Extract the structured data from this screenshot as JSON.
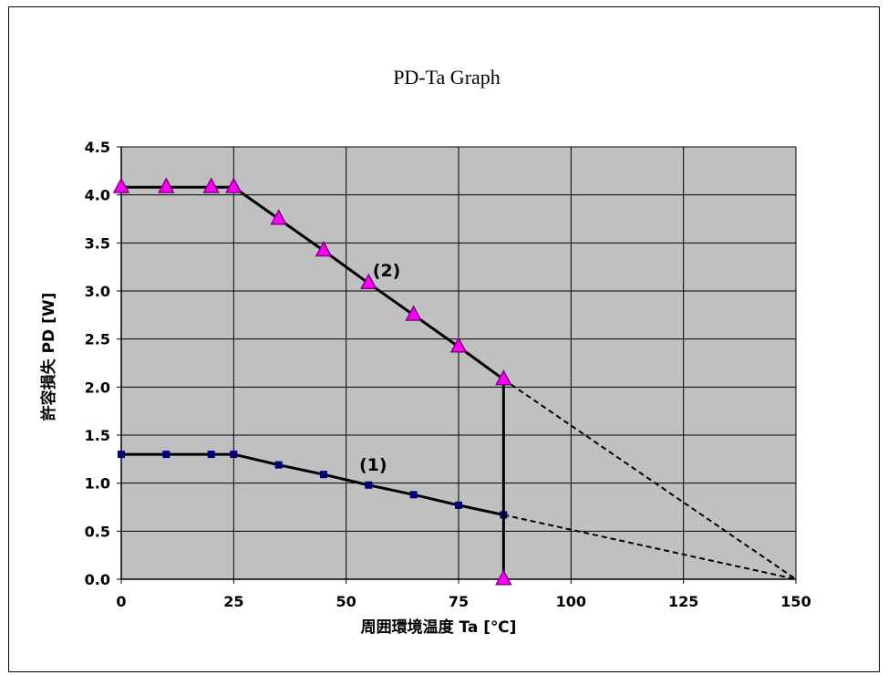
{
  "chart_data": {
    "type": "line",
    "title": "PD-Ta Graph",
    "xlabel": "周囲環境温度 Ta [℃]",
    "ylabel": "許容損失 PD [W]",
    "xlim": [
      0,
      150
    ],
    "ylim": [
      0,
      4.5
    ],
    "x_ticks": [
      0,
      25,
      50,
      75,
      100,
      125,
      150
    ],
    "y_ticks": [
      0.0,
      0.5,
      1.0,
      1.5,
      2.0,
      2.5,
      3.0,
      3.5,
      4.0,
      4.5
    ],
    "x_tick_labels": [
      "0",
      "25",
      "50",
      "75",
      "100",
      "125",
      "150"
    ],
    "y_tick_labels": [
      "0.0",
      "0.5",
      "1.0",
      "1.5",
      "2.0",
      "2.5",
      "3.0",
      "3.5",
      "4.0",
      "4.5"
    ],
    "grid": true,
    "plot_background": "#c0c0c0",
    "series": [
      {
        "label": "(1)",
        "color": "#00007f",
        "marker": "square",
        "x": [
          0,
          10,
          20,
          25,
          35,
          45,
          55,
          65,
          75,
          85
        ],
        "y": [
          1.3,
          1.3,
          1.3,
          1.3,
          1.19,
          1.09,
          0.98,
          0.88,
          0.77,
          0.67
        ],
        "extrapolation": {
          "x": [
            85,
            150
          ],
          "y": [
            0.67,
            0.0
          ],
          "style": "dashed"
        }
      },
      {
        "label": "(2)",
        "color": "#ff00ff",
        "marker": "triangle",
        "x": [
          0,
          10,
          20,
          25,
          35,
          45,
          55,
          65,
          75,
          85,
          85
        ],
        "y": [
          4.08,
          4.08,
          4.08,
          4.08,
          3.75,
          3.42,
          3.08,
          2.75,
          2.42,
          2.08,
          0.0
        ],
        "extrapolation": {
          "x": [
            85,
            150
          ],
          "y": [
            2.08,
            0.0
          ],
          "style": "dashed"
        }
      }
    ],
    "annotations": [
      {
        "text": "(2)",
        "x": 59,
        "y": 3.15
      },
      {
        "text": "(1)",
        "x": 56,
        "y": 1.13
      }
    ]
  }
}
